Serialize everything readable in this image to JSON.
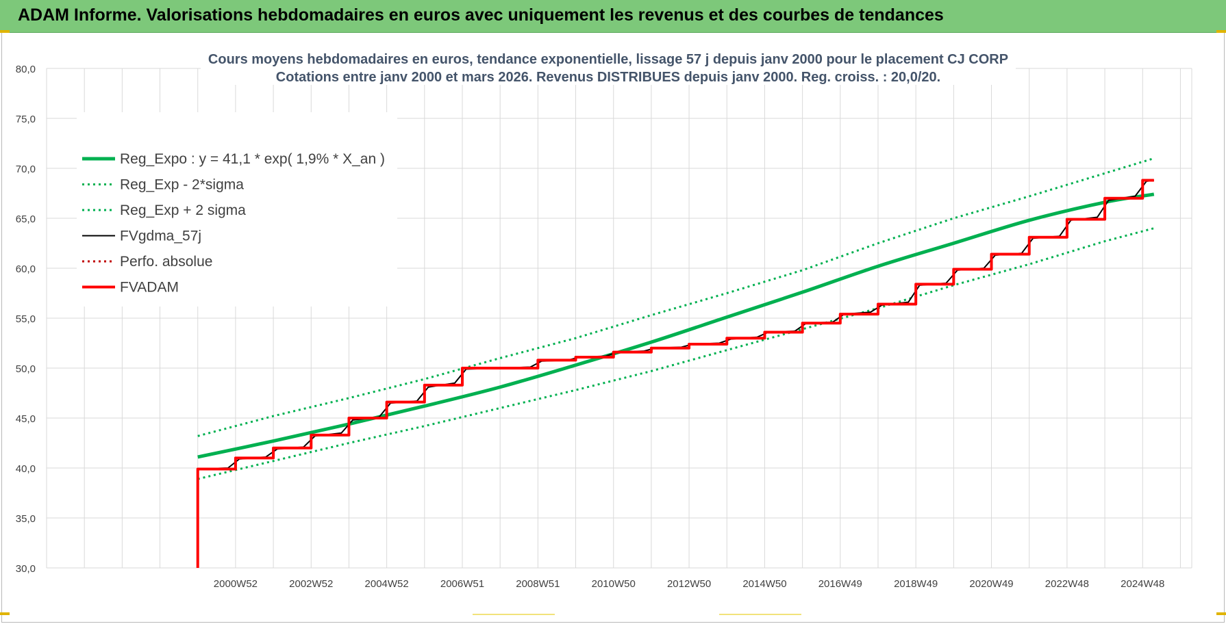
{
  "banner": {
    "title": "ADAM Informe. Valorisations hebdomadaires en euros avec uniquement les revenus et des courbes de tendances"
  },
  "colors": {
    "banner_bg": "#7dc87a",
    "reg_expo": "#00b050",
    "fvgdma": "#000000",
    "fvadam": "#ff0000",
    "perfo": "#c00000",
    "grid": "#d9d9d9"
  },
  "chart_data": {
    "type": "line",
    "title": "Cours moyens hebdomadaires en euros, tendance exponentielle, lissage 57 j depuis janv 2000 pour le placement CJ CORP",
    "subtitle": "Cotations entre janv 2000 et mars 2026. Revenus DISTRIBUES depuis janv 2000. Reg. croiss. : 20,0/20.",
    "xlabel": "",
    "ylabel": "",
    "ylim": [
      30,
      80
    ],
    "xlim": [
      1996.0,
      2026.3
    ],
    "y_ticks": [
      "30,0",
      "35,0",
      "40,0",
      "45,0",
      "50,0",
      "55,0",
      "60,0",
      "65,0",
      "70,0",
      "75,0",
      "80,0"
    ],
    "x_tick_labels": [
      {
        "label": "2000W52",
        "x": 2001.0
      },
      {
        "label": "2002W52",
        "x": 2003.0
      },
      {
        "label": "2004W52",
        "x": 2005.0
      },
      {
        "label": "2006W51",
        "x": 2007.0
      },
      {
        "label": "2008W51",
        "x": 2009.0
      },
      {
        "label": "2010W50",
        "x": 2011.0
      },
      {
        "label": "2012W50",
        "x": 2013.0
      },
      {
        "label": "2014W50",
        "x": 2015.0
      },
      {
        "label": "2016W49",
        "x": 2017.0
      },
      {
        "label": "2018W49",
        "x": 2019.0
      },
      {
        "label": "2020W49",
        "x": 2021.0
      },
      {
        "label": "2022W48",
        "x": 2023.0
      },
      {
        "label": "2024W48",
        "x": 2025.0
      }
    ],
    "grid": true,
    "legend_position": "top-left",
    "series": [
      {
        "name": "Reg_Expo : y = 41,1 * exp( 1,9% *  X_an )",
        "style": "solid-thick",
        "color": "#00b050",
        "points": [
          [
            2000.0,
            41.1
          ],
          [
            2002.0,
            42.7
          ],
          [
            2004.0,
            44.4
          ],
          [
            2006.0,
            46.2
          ],
          [
            2008.0,
            48.1
          ],
          [
            2010.0,
            50.3
          ],
          [
            2012.0,
            52.6
          ],
          [
            2014.0,
            55.1
          ],
          [
            2016.0,
            57.6
          ],
          [
            2018.0,
            60.2
          ],
          [
            2020.0,
            62.5
          ],
          [
            2022.0,
            64.8
          ],
          [
            2024.0,
            66.6
          ],
          [
            2025.3,
            67.4
          ]
        ]
      },
      {
        "name": "Reg_Exp - 2*sigma",
        "style": "dotted",
        "color": "#00b050",
        "points": [
          [
            2000.0,
            38.9
          ],
          [
            2002.0,
            40.7
          ],
          [
            2004.0,
            42.5
          ],
          [
            2006.0,
            44.2
          ],
          [
            2008.0,
            46.0
          ],
          [
            2010.0,
            47.8
          ],
          [
            2012.0,
            49.7
          ],
          [
            2014.0,
            51.8
          ],
          [
            2016.0,
            53.9
          ],
          [
            2018.0,
            56.0
          ],
          [
            2020.0,
            58.3
          ],
          [
            2022.0,
            60.4
          ],
          [
            2024.0,
            62.7
          ],
          [
            2025.3,
            64.0
          ]
        ]
      },
      {
        "name": "Reg_Exp + 2 sigma",
        "style": "dotted",
        "color": "#00b050",
        "points": [
          [
            2000.0,
            43.2
          ],
          [
            2002.0,
            45.2
          ],
          [
            2004.0,
            47.0
          ],
          [
            2006.0,
            48.9
          ],
          [
            2008.0,
            51.0
          ],
          [
            2010.0,
            53.0
          ],
          [
            2012.0,
            55.3
          ],
          [
            2014.0,
            57.5
          ],
          [
            2016.0,
            59.8
          ],
          [
            2018.0,
            62.5
          ],
          [
            2020.0,
            65.0
          ],
          [
            2022.0,
            67.2
          ],
          [
            2024.0,
            69.5
          ],
          [
            2025.3,
            71.0
          ]
        ]
      },
      {
        "name": "FVgdma_57j",
        "style": "solid-thin",
        "color": "#000000",
        "points": [
          [
            2000.0,
            39.9
          ],
          [
            2000.8,
            40.0
          ],
          [
            2001.1,
            40.9
          ],
          [
            2001.8,
            41.1
          ],
          [
            2002.1,
            41.9
          ],
          [
            2002.8,
            42.1
          ],
          [
            2003.1,
            43.2
          ],
          [
            2003.8,
            43.5
          ],
          [
            2004.1,
            44.8
          ],
          [
            2004.8,
            45.1
          ],
          [
            2005.1,
            46.5
          ],
          [
            2005.8,
            46.7
          ],
          [
            2006.1,
            48.1
          ],
          [
            2006.8,
            48.5
          ],
          [
            2007.1,
            49.9
          ],
          [
            2008.8,
            50.1
          ],
          [
            2009.1,
            50.7
          ],
          [
            2009.8,
            50.8
          ],
          [
            2010.1,
            51.1
          ],
          [
            2010.8,
            51.2
          ],
          [
            2011.1,
            51.6
          ],
          [
            2011.8,
            51.7
          ],
          [
            2012.1,
            52.0
          ],
          [
            2012.8,
            52.1
          ],
          [
            2013.1,
            52.4
          ],
          [
            2013.8,
            52.5
          ],
          [
            2014.1,
            52.9
          ],
          [
            2014.8,
            53.1
          ],
          [
            2015.1,
            53.6
          ],
          [
            2015.8,
            53.7
          ],
          [
            2016.1,
            54.5
          ],
          [
            2016.8,
            54.6
          ],
          [
            2017.1,
            55.4
          ],
          [
            2017.8,
            55.6
          ],
          [
            2018.1,
            56.3
          ],
          [
            2018.8,
            56.6
          ],
          [
            2019.1,
            58.3
          ],
          [
            2019.8,
            58.5
          ],
          [
            2020.1,
            59.8
          ],
          [
            2020.8,
            60.0
          ],
          [
            2021.1,
            61.3
          ],
          [
            2021.8,
            61.5
          ],
          [
            2022.1,
            63.0
          ],
          [
            2022.8,
            63.2
          ],
          [
            2023.1,
            64.8
          ],
          [
            2023.8,
            65.1
          ],
          [
            2024.1,
            66.8
          ],
          [
            2024.8,
            67.2
          ],
          [
            2025.1,
            68.7
          ],
          [
            2025.3,
            68.8
          ]
        ]
      },
      {
        "name": "Perfo. absolue",
        "style": "dotted",
        "color": "#c00000",
        "points": []
      },
      {
        "name": "FVADAM",
        "style": "solid-thick",
        "color": "#ff0000",
        "points": [
          [
            2000.0,
            30.0
          ],
          [
            2000.0,
            39.9
          ],
          [
            2001.0,
            39.9
          ],
          [
            2001.0,
            41.0
          ],
          [
            2002.0,
            41.0
          ],
          [
            2002.0,
            42.0
          ],
          [
            2003.0,
            42.0
          ],
          [
            2003.0,
            43.3
          ],
          [
            2004.0,
            43.3
          ],
          [
            2004.0,
            45.0
          ],
          [
            2005.0,
            45.0
          ],
          [
            2005.0,
            46.6
          ],
          [
            2006.0,
            46.6
          ],
          [
            2006.0,
            48.3
          ],
          [
            2007.0,
            48.3
          ],
          [
            2007.0,
            50.0
          ],
          [
            2009.0,
            50.0
          ],
          [
            2009.0,
            50.8
          ],
          [
            2010.0,
            50.8
          ],
          [
            2010.0,
            51.1
          ],
          [
            2011.0,
            51.1
          ],
          [
            2011.0,
            51.6
          ],
          [
            2012.0,
            51.6
          ],
          [
            2012.0,
            52.0
          ],
          [
            2013.0,
            52.0
          ],
          [
            2013.0,
            52.4
          ],
          [
            2014.0,
            52.4
          ],
          [
            2014.0,
            53.0
          ],
          [
            2015.0,
            53.0
          ],
          [
            2015.0,
            53.6
          ],
          [
            2016.0,
            53.6
          ],
          [
            2016.0,
            54.5
          ],
          [
            2017.0,
            54.5
          ],
          [
            2017.0,
            55.4
          ],
          [
            2018.0,
            55.4
          ],
          [
            2018.0,
            56.4
          ],
          [
            2019.0,
            56.4
          ],
          [
            2019.0,
            58.4
          ],
          [
            2020.0,
            58.4
          ],
          [
            2020.0,
            59.9
          ],
          [
            2021.0,
            59.9
          ],
          [
            2021.0,
            61.4
          ],
          [
            2022.0,
            61.4
          ],
          [
            2022.0,
            63.1
          ],
          [
            2023.0,
            63.1
          ],
          [
            2023.0,
            64.9
          ],
          [
            2024.0,
            64.9
          ],
          [
            2024.0,
            67.0
          ],
          [
            2025.0,
            67.0
          ],
          [
            2025.0,
            68.8
          ],
          [
            2025.3,
            68.8
          ]
        ]
      }
    ]
  }
}
